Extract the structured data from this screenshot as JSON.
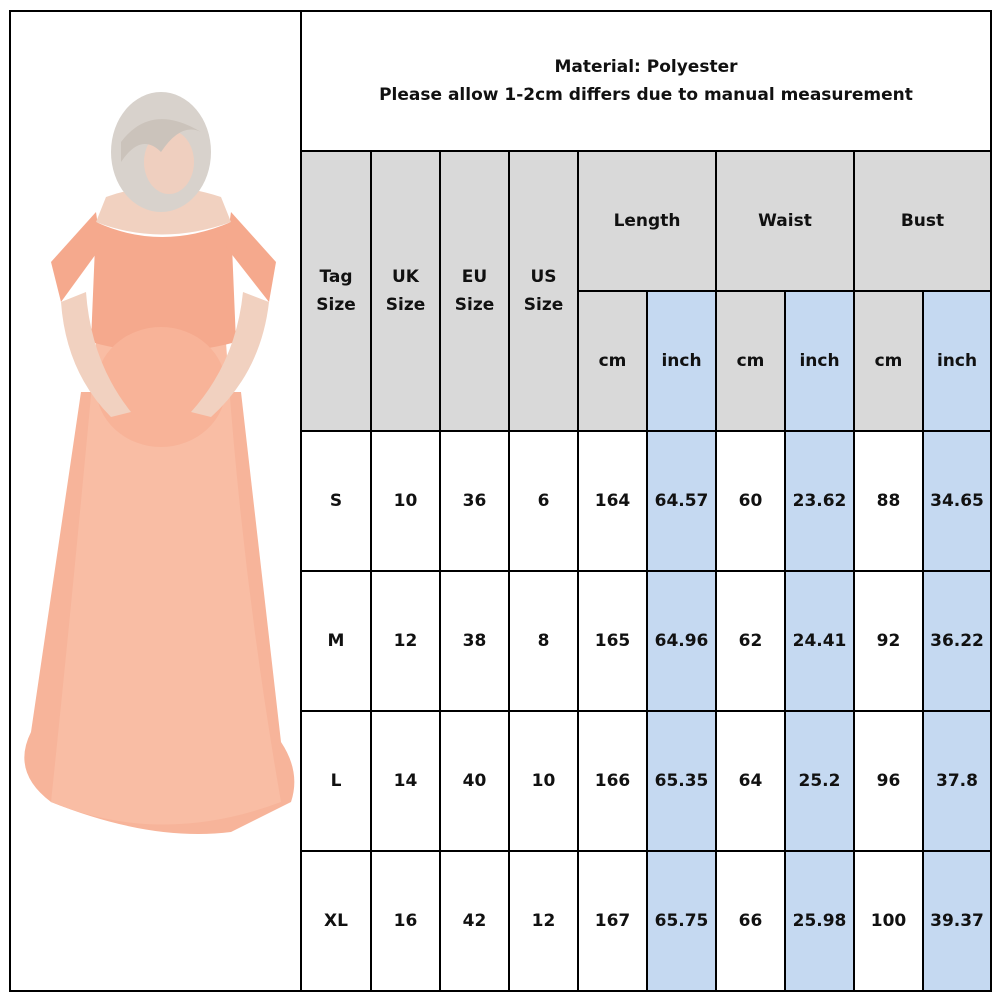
{
  "header": {
    "material": "Material: Polyester",
    "note": "Please allow 1-2cm differs due to manual measurement"
  },
  "columns": {
    "tag_size": [
      "Tag",
      "Size"
    ],
    "uk_size": [
      "UK",
      "Size"
    ],
    "eu_size": [
      "EU",
      "Size"
    ],
    "us_size": [
      "US",
      "Size"
    ],
    "length": "Length",
    "waist": "Waist",
    "bust": "Bust",
    "cm": "cm",
    "inch": "inch"
  },
  "rows": [
    [
      "S",
      "10",
      "36",
      "6",
      "164",
      "64.57",
      "60",
      "23.62",
      "88",
      "34.65"
    ],
    [
      "M",
      "12",
      "38",
      "8",
      "165",
      "64.96",
      "62",
      "24.41",
      "92",
      "36.22"
    ],
    [
      "L",
      "14",
      "40",
      "10",
      "166",
      "65.35",
      "64",
      "25.2",
      "96",
      "37.8"
    ],
    [
      "XL",
      "16",
      "42",
      "12",
      "167",
      "65.75",
      "66",
      "25.98",
      "100",
      "39.37"
    ]
  ],
  "colors": {
    "header_gray": "#d9d9d9",
    "inch_blue": "#c5d9f1",
    "dress": "#f7b49a"
  }
}
